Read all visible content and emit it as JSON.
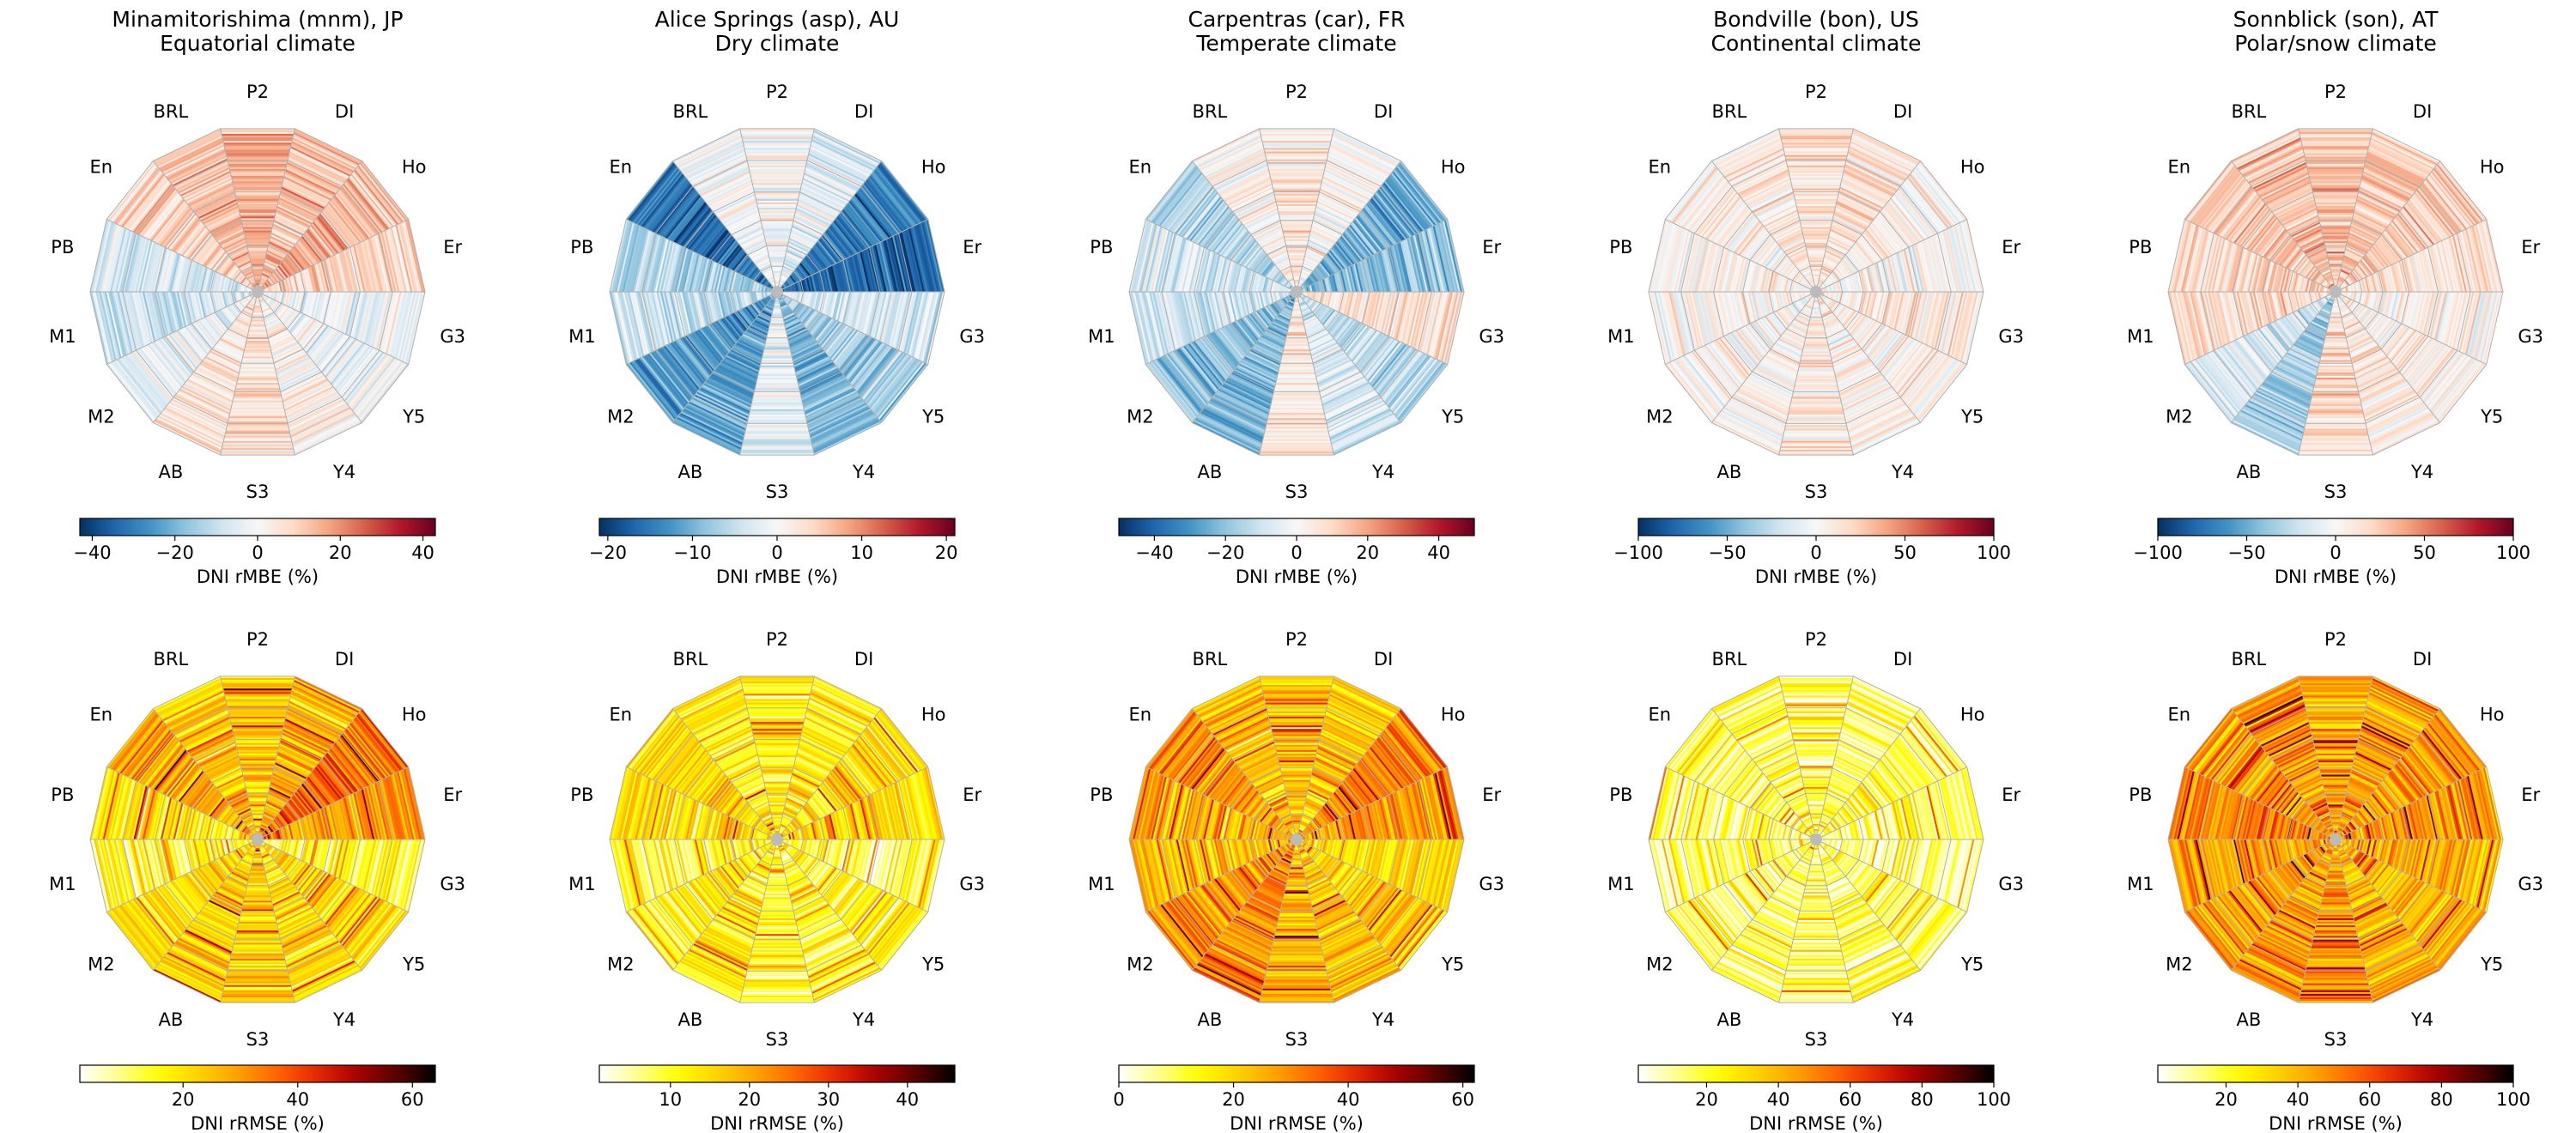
{
  "figure": {
    "model_labels": [
      "P2",
      "DI",
      "Ho",
      "Er",
      "G3",
      "Y5",
      "Y4",
      "S3",
      "AB",
      "M2",
      "M1",
      "PB",
      "En",
      "BRL"
    ]
  },
  "sites": [
    {
      "name": "Minamitorishima (mnm), JP",
      "climate": "Equatorial climate"
    },
    {
      "name": "Alice Springs (asp), AU",
      "climate": "Dry climate"
    },
    {
      "name": "Carpentras (car), FR",
      "climate": "Temperate climate"
    },
    {
      "name": "Bondville (bon), US",
      "climate": "Continental climate"
    },
    {
      "name": "Sonnblick (son), AT",
      "climate": "Polar/snow climate"
    }
  ],
  "rows": [
    {
      "metric": "DNI rMBE (%)",
      "colormap": "RdBu_r"
    },
    {
      "metric": "DNI rRMSE (%)",
      "colormap": "hot_r"
    }
  ],
  "chart_data": [
    {
      "type": "heatmap",
      "subtype": "polar-radar",
      "title": "Minamitorishima (mnm), JP",
      "subtitle": "Equatorial climate",
      "metric": "DNI rMBE (%)",
      "categories": [
        "P2",
        "DI",
        "Ho",
        "Er",
        "G3",
        "Y5",
        "Y4",
        "S3",
        "AB",
        "M2",
        "M1",
        "PB",
        "En",
        "BRL"
      ],
      "mean_bias": [
        0.35,
        0.3,
        0.35,
        0.2,
        -0.05,
        -0.05,
        0.05,
        0.15,
        0.1,
        -0.1,
        -0.2,
        -0.15,
        0.2,
        0.3
      ],
      "colorbar": {
        "range": [
          -43,
          43
        ],
        "ticks": [
          -40,
          -20,
          0,
          20,
          40
        ]
      }
    },
    {
      "type": "heatmap",
      "subtype": "polar-radar",
      "title": "Alice Springs (asp), AU",
      "subtitle": "Dry climate",
      "metric": "DNI rMBE (%)",
      "categories": [
        "P2",
        "DI",
        "Ho",
        "Er",
        "G3",
        "Y5",
        "Y4",
        "S3",
        "AB",
        "M2",
        "M1",
        "PB",
        "En",
        "BRL"
      ],
      "mean_bias": [
        0.0,
        -0.1,
        -0.7,
        -0.8,
        -0.15,
        -0.35,
        -0.45,
        -0.1,
        -0.55,
        -0.6,
        -0.2,
        -0.3,
        -0.75,
        -0.05
      ],
      "colorbar": {
        "range": [
          -21,
          21
        ],
        "ticks": [
          -20,
          -10,
          0,
          10,
          20
        ]
      }
    },
    {
      "type": "heatmap",
      "subtype": "polar-radar",
      "title": "Carpentras (car), FR",
      "subtitle": "Temperate climate",
      "metric": "DNI rMBE (%)",
      "categories": [
        "P2",
        "DI",
        "Ho",
        "Er",
        "G3",
        "Y5",
        "Y4",
        "S3",
        "AB",
        "M2",
        "M1",
        "PB",
        "En",
        "BRL"
      ],
      "mean_bias": [
        0.1,
        0.0,
        -0.5,
        -0.4,
        0.15,
        -0.25,
        -0.15,
        0.1,
        -0.45,
        -0.4,
        -0.2,
        -0.15,
        -0.3,
        0.05
      ],
      "colorbar": {
        "range": [
          -50,
          50
        ],
        "ticks": [
          -40,
          -20,
          0,
          20,
          40
        ]
      }
    },
    {
      "type": "heatmap",
      "subtype": "polar-radar",
      "title": "Bondville (bon), US",
      "subtitle": "Continental climate",
      "metric": "DNI rMBE (%)",
      "categories": [
        "P2",
        "DI",
        "Ho",
        "Er",
        "G3",
        "Y5",
        "Y4",
        "S3",
        "AB",
        "M2",
        "M1",
        "PB",
        "En",
        "BRL"
      ],
      "mean_bias": [
        0.15,
        0.15,
        0.05,
        0.0,
        0.1,
        0.05,
        0.05,
        0.1,
        0.05,
        0.0,
        0.05,
        0.05,
        0.05,
        0.1
      ],
      "colorbar": {
        "range": [
          -100,
          100
        ],
        "ticks": [
          -100,
          -50,
          0,
          50,
          100
        ]
      }
    },
    {
      "type": "heatmap",
      "subtype": "polar-radar",
      "title": "Sonnblick (son), AT",
      "subtitle": "Polar/snow climate",
      "metric": "DNI rMBE (%)",
      "categories": [
        "P2",
        "DI",
        "Ho",
        "Er",
        "G3",
        "Y5",
        "Y4",
        "S3",
        "AB",
        "M2",
        "M1",
        "PB",
        "En",
        "BRL"
      ],
      "mean_bias": [
        0.3,
        0.25,
        0.25,
        0.15,
        0.05,
        0.05,
        0.1,
        0.2,
        -0.35,
        -0.15,
        0.15,
        0.2,
        0.25,
        0.3
      ],
      "colorbar": {
        "range": [
          -100,
          100
        ],
        "ticks": [
          -100,
          -50,
          0,
          50,
          100
        ]
      }
    },
    {
      "type": "heatmap",
      "subtype": "polar-radar",
      "title": "Minamitorishima (mnm), JP",
      "subtitle": "Equatorial climate",
      "metric": "DNI rRMSE (%)",
      "categories": [
        "P2",
        "DI",
        "Ho",
        "Er",
        "G3",
        "Y5",
        "Y4",
        "S3",
        "AB",
        "M2",
        "M1",
        "PB",
        "En",
        "BRL"
      ],
      "mean_error": [
        0.35,
        0.4,
        0.55,
        0.45,
        0.2,
        0.3,
        0.3,
        0.35,
        0.35,
        0.3,
        0.2,
        0.25,
        0.4,
        0.35
      ],
      "colorbar": {
        "range": [
          2,
          64
        ],
        "ticks": [
          20,
          40,
          60
        ]
      }
    },
    {
      "type": "heatmap",
      "subtype": "polar-radar",
      "title": "Alice Springs (asp), AU",
      "subtitle": "Dry climate",
      "metric": "DNI rRMSE (%)",
      "categories": [
        "P2",
        "DI",
        "Ho",
        "Er",
        "G3",
        "Y5",
        "Y4",
        "S3",
        "AB",
        "M2",
        "M1",
        "PB",
        "En",
        "BRL"
      ],
      "mean_error": [
        0.25,
        0.25,
        0.3,
        0.3,
        0.15,
        0.2,
        0.2,
        0.2,
        0.25,
        0.25,
        0.2,
        0.3,
        0.3,
        0.25
      ],
      "colorbar": {
        "range": [
          1,
          46
        ],
        "ticks": [
          10,
          20,
          30,
          40
        ]
      }
    },
    {
      "type": "heatmap",
      "subtype": "polar-radar",
      "title": "Carpentras (car), FR",
      "subtitle": "Temperate climate",
      "metric": "DNI rRMSE (%)",
      "categories": [
        "P2",
        "DI",
        "Ho",
        "Er",
        "G3",
        "Y5",
        "Y4",
        "S3",
        "AB",
        "M2",
        "M1",
        "PB",
        "En",
        "BRL"
      ],
      "mean_error": [
        0.35,
        0.35,
        0.5,
        0.45,
        0.3,
        0.35,
        0.35,
        0.4,
        0.5,
        0.45,
        0.35,
        0.4,
        0.45,
        0.35
      ],
      "colorbar": {
        "range": [
          0,
          62
        ],
        "ticks": [
          0,
          20,
          40,
          60
        ]
      }
    },
    {
      "type": "heatmap",
      "subtype": "polar-radar",
      "title": "Bondville (bon), US",
      "subtitle": "Continental climate",
      "metric": "DNI rRMSE (%)",
      "categories": [
        "P2",
        "DI",
        "Ho",
        "Er",
        "G3",
        "Y5",
        "Y4",
        "S3",
        "AB",
        "M2",
        "M1",
        "PB",
        "En",
        "BRL"
      ],
      "mean_error": [
        0.15,
        0.15,
        0.15,
        0.15,
        0.1,
        0.15,
        0.15,
        0.15,
        0.15,
        0.15,
        0.15,
        0.15,
        0.15,
        0.15
      ],
      "colorbar": {
        "range": [
          1,
          100
        ],
        "ticks": [
          20,
          40,
          60,
          80,
          100
        ]
      }
    },
    {
      "type": "heatmap",
      "subtype": "polar-radar",
      "title": "Sonnblick (son), AT",
      "subtitle": "Polar/snow climate",
      "metric": "DNI rRMSE (%)",
      "categories": [
        "P2",
        "DI",
        "Ho",
        "Er",
        "G3",
        "Y5",
        "Y4",
        "S3",
        "AB",
        "M2",
        "M1",
        "PB",
        "En",
        "BRL"
      ],
      "mean_error": [
        0.4,
        0.45,
        0.45,
        0.45,
        0.4,
        0.4,
        0.4,
        0.45,
        0.45,
        0.45,
        0.45,
        0.5,
        0.45,
        0.45
      ],
      "colorbar": {
        "range": [
          1,
          100
        ],
        "ticks": [
          20,
          40,
          60,
          80,
          100
        ]
      }
    }
  ]
}
